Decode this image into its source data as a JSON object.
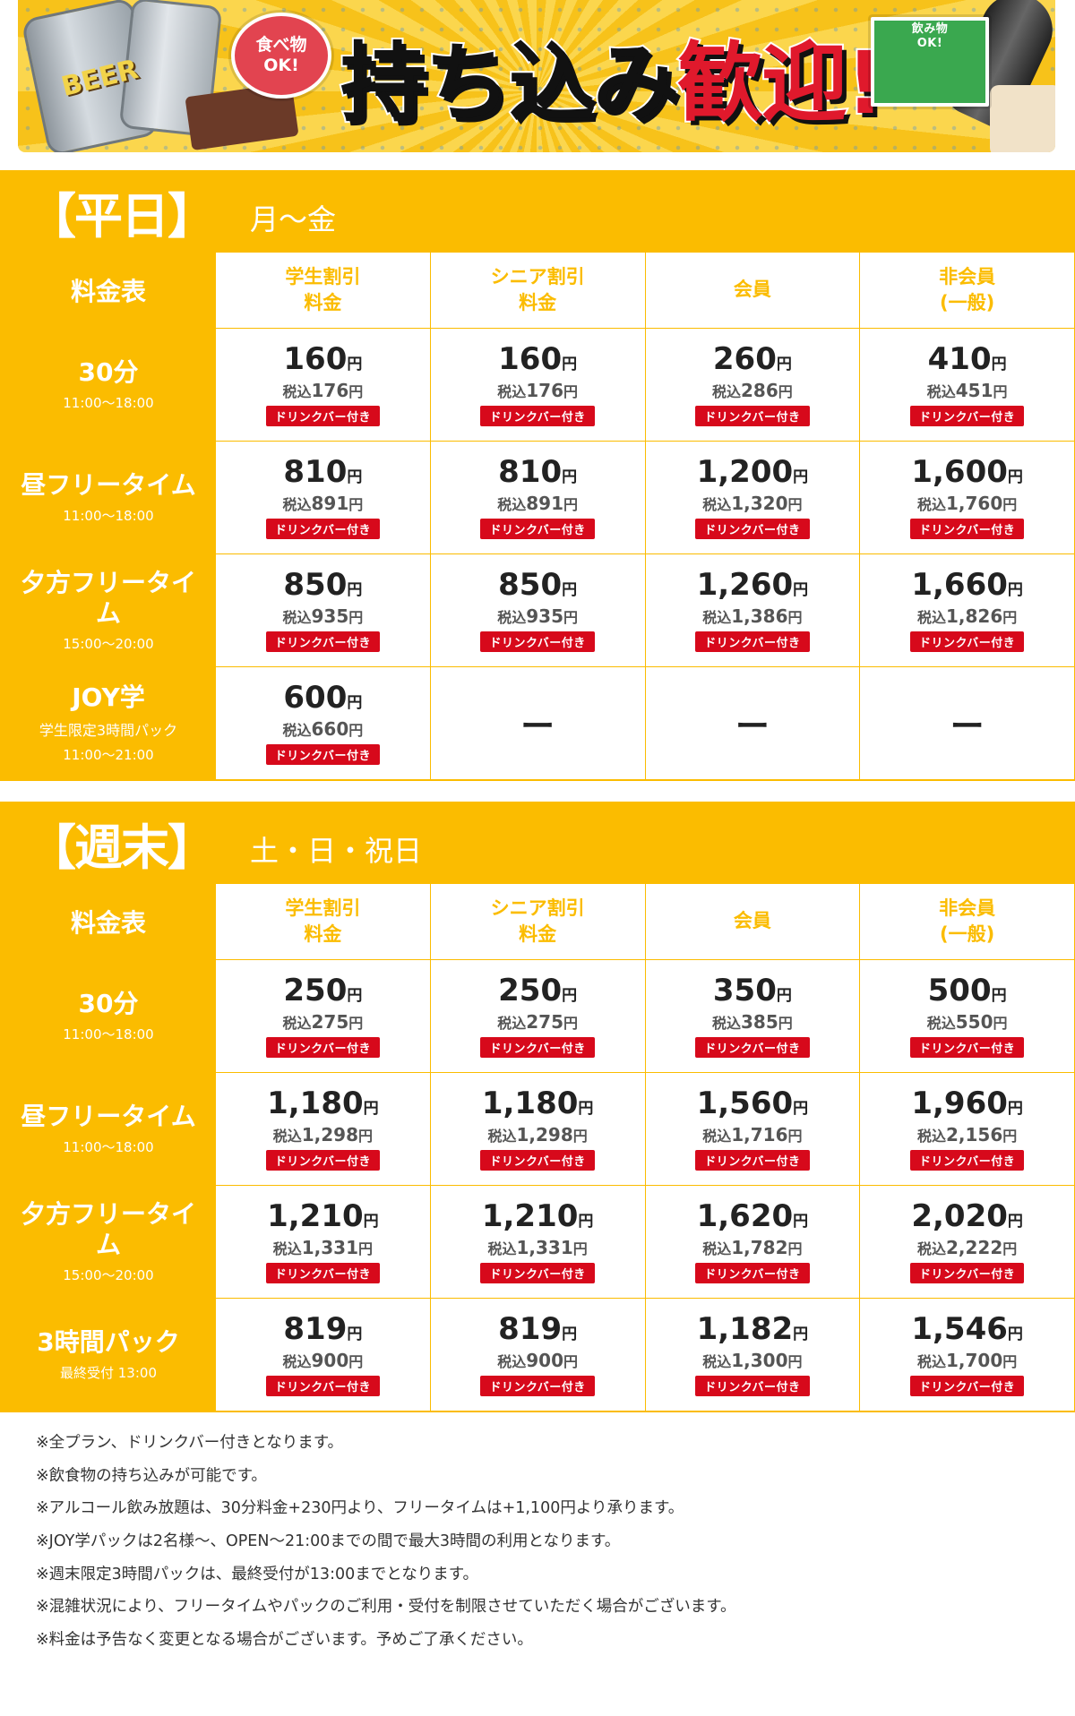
{
  "banner": {
    "food_bubble": [
      "食べ物",
      "OK!"
    ],
    "drink_bubble": [
      "飲み物",
      "OK!"
    ],
    "title_main": "持ち込み",
    "title_accent": "歓迎!",
    "beer_label": "BEER"
  },
  "columns": [
    "料金表",
    "学生割引\n料金",
    "シニア割引\n料金",
    "会員",
    "非会員\n(一般)"
  ],
  "drink_badge": "ドリンクバー付き",
  "yen": "円",
  "tax_prefix": "税込",
  "weekday": {
    "title": "【平日】",
    "subtitle": "月〜金",
    "rows": [
      {
        "name": "30分",
        "time": "11:00〜18:00",
        "sub": "",
        "prices": [
          {
            "price": "160",
            "tax": "176"
          },
          {
            "price": "160",
            "tax": "176"
          },
          {
            "price": "260",
            "tax": "286"
          },
          {
            "price": "410",
            "tax": "451"
          }
        ]
      },
      {
        "name": "昼フリータイム",
        "time": "11:00〜18:00",
        "sub": "",
        "prices": [
          {
            "price": "810",
            "tax": "891"
          },
          {
            "price": "810",
            "tax": "891"
          },
          {
            "price": "1,200",
            "tax": "1,320"
          },
          {
            "price": "1,600",
            "tax": "1,760"
          }
        ]
      },
      {
        "name": "夕方フリータイム",
        "time": "15:00〜20:00",
        "sub": "",
        "prices": [
          {
            "price": "850",
            "tax": "935"
          },
          {
            "price": "850",
            "tax": "935"
          },
          {
            "price": "1,260",
            "tax": "1,386"
          },
          {
            "price": "1,660",
            "tax": "1,826"
          }
        ]
      },
      {
        "name": "JOY学",
        "time": "11:00〜21:00",
        "sub": "学生限定3時間パック",
        "prices": [
          {
            "price": "600",
            "tax": "660"
          },
          null,
          null,
          null
        ]
      }
    ]
  },
  "weekend": {
    "title": "【週末】",
    "subtitle": "土・日・祝日",
    "rows": [
      {
        "name": "30分",
        "time": "11:00〜18:00",
        "sub": "",
        "prices": [
          {
            "price": "250",
            "tax": "275"
          },
          {
            "price": "250",
            "tax": "275"
          },
          {
            "price": "350",
            "tax": "385"
          },
          {
            "price": "500",
            "tax": "550"
          }
        ]
      },
      {
        "name": "昼フリータイム",
        "time": "11:00〜18:00",
        "sub": "",
        "prices": [
          {
            "price": "1,180",
            "tax": "1,298"
          },
          {
            "price": "1,180",
            "tax": "1,298"
          },
          {
            "price": "1,560",
            "tax": "1,716"
          },
          {
            "price": "1,960",
            "tax": "2,156"
          }
        ]
      },
      {
        "name": "夕方フリータイム",
        "time": "15:00〜20:00",
        "sub": "",
        "prices": [
          {
            "price": "1,210",
            "tax": "1,331"
          },
          {
            "price": "1,210",
            "tax": "1,331"
          },
          {
            "price": "1,620",
            "tax": "1,782"
          },
          {
            "price": "2,020",
            "tax": "2,222"
          }
        ]
      },
      {
        "name": "3時間パック",
        "time": "最終受付 13:00",
        "sub": "",
        "prices": [
          {
            "price": "819",
            "tax": "900"
          },
          {
            "price": "819",
            "tax": "900"
          },
          {
            "price": "1,182",
            "tax": "1,300"
          },
          {
            "price": "1,546",
            "tax": "1,700"
          }
        ]
      }
    ]
  },
  "empty_mark": "ー",
  "notes": [
    "※全プラン、ドリンクバー付きとなります。",
    "※飲食物の持ち込みが可能です。",
    "※アルコール飲み放題は、30分料金+230円より、フリータイムは+1,100円より承ります。",
    "※JOY学パックは2名様〜、OPEN〜21:00までの間で最大3時間の利用となります。",
    "※週末限定3時間パックは、最終受付が13:00までとなります。",
    "※混雑状況により、フリータイムやパックのご利用・受付を制限させていただく場合がございます。",
    "※料金は予告なく変更となる場合がございます。予めご了承ください。"
  ],
  "colors": {
    "accent": "#fbbc00",
    "badge": "#d7091b",
    "title_red": "#e0192c"
  }
}
